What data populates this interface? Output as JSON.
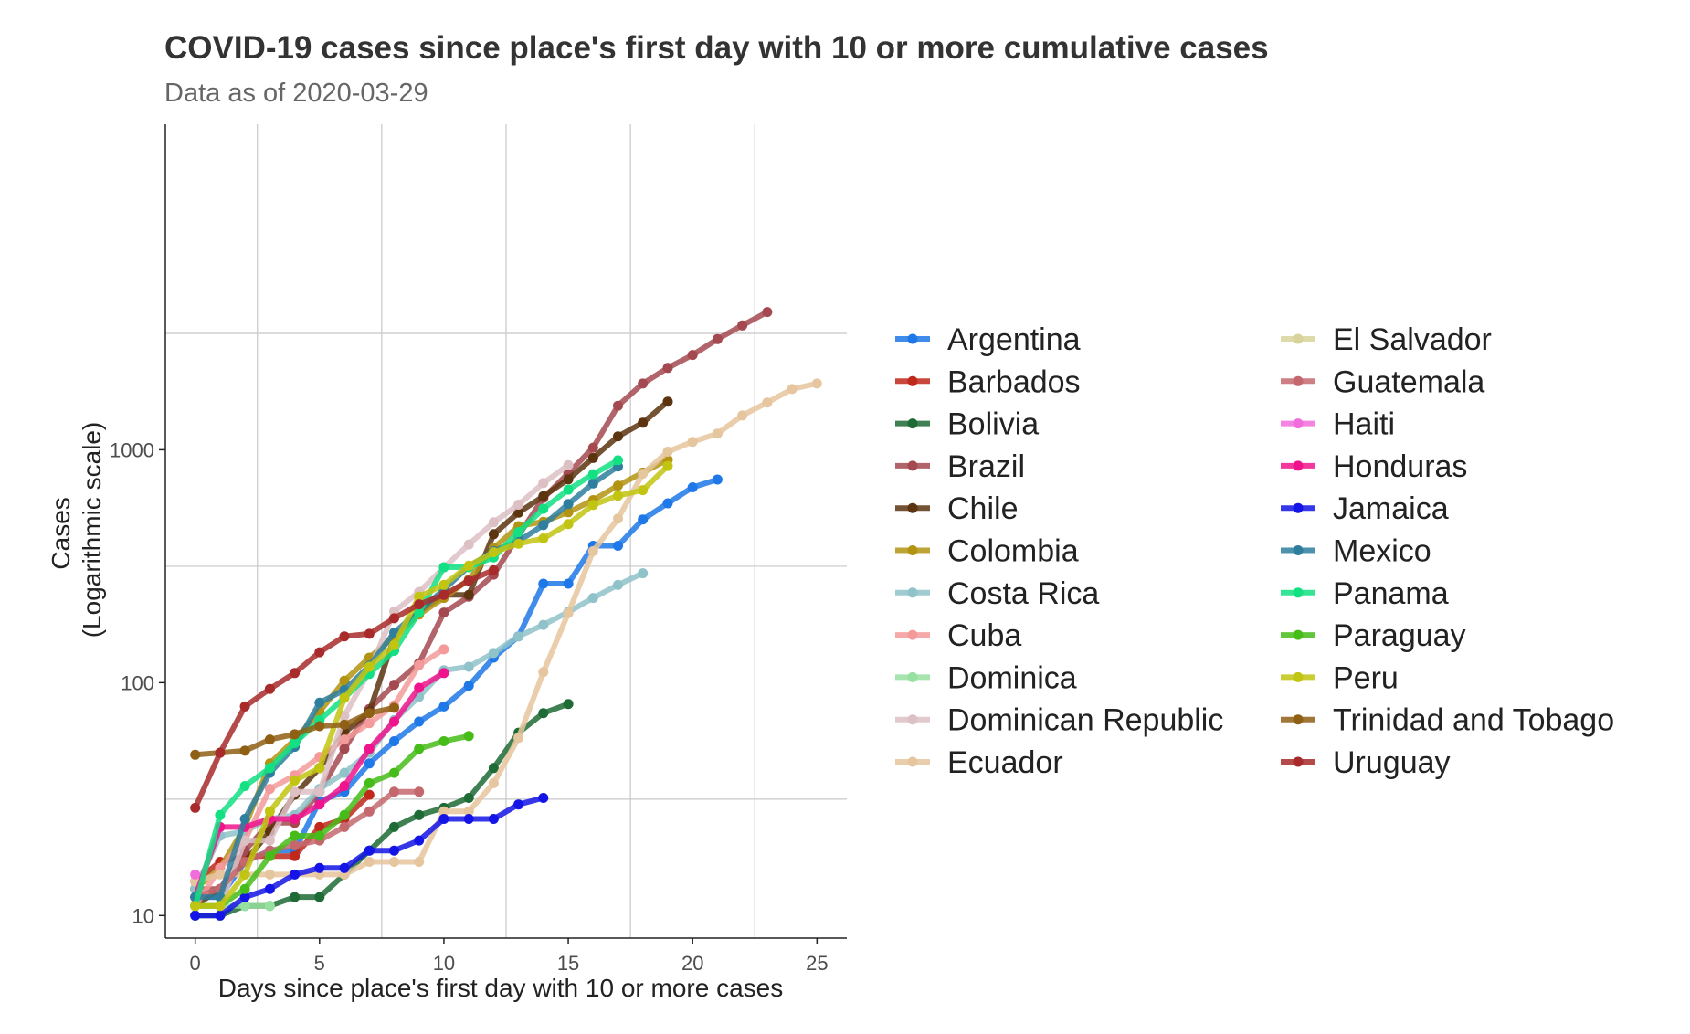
{
  "chart_data": {
    "type": "line",
    "title": "COVID-19 cases since place's first day with 10 or more cumulative cases",
    "subtitle": "Data as of 2020-03-29",
    "xlabel": "Days since place's first day with 10 or more cases",
    "ylabel": [
      "Cases",
      "(Logarithmic scale)"
    ],
    "xlim": [
      -1.2,
      26.2
    ],
    "ylim": [
      8,
      25000
    ],
    "y_scale": "log",
    "x_ticks": [
      0,
      5,
      10,
      15,
      20,
      25
    ],
    "x_tick_labels": [
      "0",
      "5",
      "10",
      "15",
      "20",
      "25"
    ],
    "x_minor_gridlines": [
      2.5,
      7.5,
      12.5,
      17.5,
      22.5
    ],
    "y_ticks": [
      10,
      100,
      1000
    ],
    "y_tick_labels": [
      "10",
      "100",
      "1000"
    ],
    "y_minor_gridlines": [
      31.6,
      316,
      3160
    ],
    "grid": true,
    "legend_position": "right",
    "legend_columns": 2,
    "series": [
      {
        "name": "Argentina",
        "color": "#1f78e8",
        "x": [
          0,
          1,
          2,
          3,
          4,
          5,
          6,
          7,
          8,
          9,
          10,
          11,
          12,
          13,
          14,
          15,
          16,
          17,
          18,
          19,
          20,
          21
        ],
        "y": [
          12,
          12,
          17,
          19,
          19,
          31,
          34,
          45,
          56,
          68,
          79,
          97,
          128,
          158,
          266,
          266,
          387,
          387,
          502,
          589,
          690,
          745
        ]
      },
      {
        "name": "Barbados",
        "color": "#c0281b",
        "x": [
          0,
          1,
          2,
          3,
          4,
          5,
          6,
          7
        ],
        "y": [
          14,
          17,
          18,
          18,
          18,
          24,
          26,
          33
        ]
      },
      {
        "name": "Bolivia",
        "color": "#1e6b35",
        "x": [
          0,
          1,
          2,
          3,
          4,
          5,
          6,
          7,
          8,
          9,
          10,
          11,
          12,
          13,
          14,
          15
        ],
        "y": [
          10,
          10,
          11,
          11,
          12,
          12,
          15,
          19,
          24,
          27,
          29,
          32,
          43,
          61,
          74,
          81
        ]
      },
      {
        "name": "Brazil",
        "color": "#a3494f",
        "x": [
          0,
          1,
          2,
          3,
          4,
          5,
          6,
          7,
          8,
          9,
          10,
          11,
          12,
          13,
          14,
          15,
          16,
          17,
          18,
          19,
          20,
          21,
          22,
          23
        ],
        "y": [
          13,
          13,
          19,
          25,
          25,
          34,
          52,
          77,
          98,
          121,
          200,
          234,
          291,
          428,
          621,
          793,
          1021,
          1546,
          1924,
          2247,
          2554,
          2985,
          3417,
          3904
        ]
      },
      {
        "name": "Chile",
        "color": "#5c3410",
        "x": [
          0,
          1,
          2,
          3,
          4,
          5,
          6,
          7,
          8,
          9,
          10,
          11,
          12,
          13,
          14,
          15,
          16,
          17,
          18,
          19
        ],
        "y": [
          11,
          13,
          17,
          23,
          33,
          43,
          61,
          75,
          156,
          201,
          238,
          238,
          434,
          537,
          632,
          746,
          922,
          1142,
          1306,
          1610
        ]
      },
      {
        "name": "Colombia",
        "color": "#b39412",
        "x": [
          0,
          1,
          2,
          3,
          4,
          5,
          6,
          7,
          8,
          9,
          10,
          11,
          12,
          13,
          14,
          15,
          16,
          17,
          18,
          19
        ],
        "y": [
          13,
          16,
          24,
          45,
          57,
          75,
          102,
          128,
          158,
          196,
          231,
          277,
          378,
          470,
          491,
          539,
          608,
          702,
          798,
          906
        ]
      },
      {
        "name": "Costa Rica",
        "color": "#8fc3c9",
        "x": [
          0,
          1,
          2,
          3,
          4,
          5,
          6,
          7,
          8,
          9,
          10,
          11,
          12,
          13,
          14,
          15,
          16,
          17,
          18
        ],
        "y": [
          13,
          22,
          23,
          26,
          27,
          35,
          41,
          50,
          69,
          87,
          113,
          117,
          134,
          158,
          177,
          201,
          231,
          263,
          295
        ]
      },
      {
        "name": "Cuba",
        "color": "#f59a9a",
        "x": [
          0,
          1,
          2,
          3,
          4,
          5,
          6,
          7,
          8,
          9,
          10
        ],
        "y": [
          11,
          16,
          21,
          35,
          40,
          48,
          57,
          67,
          80,
          119,
          139
        ]
      },
      {
        "name": "Dominica",
        "color": "#96e0a0",
        "x": [
          0,
          1,
          2,
          3
        ],
        "y": [
          11,
          11,
          11,
          11
        ]
      },
      {
        "name": "Dominican Republic",
        "color": "#dcc0c4",
        "x": [
          0,
          1,
          2,
          3,
          4,
          5,
          6,
          7,
          8,
          9,
          10,
          11,
          12,
          13,
          14,
          15
        ],
        "y": [
          11,
          11,
          21,
          21,
          34,
          34,
          72,
          112,
          202,
          245,
          312,
          392,
          488,
          581,
          719,
          859
        ]
      },
      {
        "name": "Ecuador",
        "color": "#e6c69e",
        "x": [
          0,
          1,
          2,
          3,
          4,
          5,
          6,
          7,
          8,
          9,
          10,
          11,
          12,
          13,
          14,
          15,
          16,
          17,
          18,
          19,
          20,
          21,
          22,
          23,
          24,
          25
        ],
        "y": [
          14,
          15,
          15,
          15,
          15,
          15,
          15,
          17,
          17,
          17,
          28,
          28,
          37,
          58,
          111,
          199,
          367,
          506,
          789,
          981,
          1082,
          1173,
          1403,
          1595,
          1823,
          1924
        ]
      },
      {
        "name": "El Salvador",
        "color": "#d8d39a",
        "x": [],
        "y": []
      },
      {
        "name": "Guatemala",
        "color": "#c4686e",
        "x": [
          0,
          1,
          2,
          3,
          4,
          5,
          6,
          7,
          8,
          9
        ],
        "y": [
          12,
          13,
          17,
          19,
          20,
          21,
          24,
          28,
          34,
          34
        ]
      },
      {
        "name": "Haiti",
        "color": "#f26ddc",
        "x": [
          0
        ],
        "y": [
          15
        ]
      },
      {
        "name": "Honduras",
        "color": "#f0148c",
        "x": [
          0,
          1,
          2,
          3,
          4,
          5,
          6,
          7,
          8,
          9,
          10
        ],
        "y": [
          12,
          24,
          24,
          26,
          26,
          30,
          36,
          52,
          68,
          95,
          110
        ]
      },
      {
        "name": "Jamaica",
        "color": "#1414e6",
        "x": [
          0,
          1,
          2,
          3,
          4,
          5,
          6,
          7,
          8,
          9,
          10,
          11,
          12,
          13,
          14
        ],
        "y": [
          10,
          10,
          12,
          13,
          15,
          16,
          16,
          19,
          19,
          21,
          26,
          26,
          26,
          30,
          32
        ]
      },
      {
        "name": "Mexico",
        "color": "#2e7f9e",
        "x": [
          0,
          1,
          2,
          3,
          4,
          5,
          6,
          7,
          8,
          9,
          10,
          11,
          12,
          13,
          14,
          15,
          16,
          17
        ],
        "y": [
          12,
          12,
          26,
          41,
          53,
          82,
          93,
          118,
          164,
          203,
          251,
          316,
          367,
          405,
          475,
          585,
          717,
          848
        ]
      },
      {
        "name": "Panama",
        "color": "#12e082",
        "x": [
          0,
          1,
          2,
          3,
          4,
          5,
          6,
          7,
          8,
          9,
          10,
          11,
          12,
          13,
          14,
          15,
          16,
          17
        ],
        "y": [
          11,
          27,
          36,
          43,
          55,
          69,
          86,
          109,
          137,
          200,
          313,
          313,
          345,
          443,
          558,
          674,
          786,
          901
        ]
      },
      {
        "name": "Paraguay",
        "color": "#46bc19",
        "x": [
          0,
          1,
          2,
          3,
          4,
          5,
          6,
          7,
          8,
          9,
          10,
          11
        ],
        "y": [
          11,
          11,
          13,
          18,
          22,
          22,
          27,
          37,
          41,
          52,
          56,
          59
        ]
      },
      {
        "name": "Peru",
        "color": "#c2c412",
        "x": [
          0,
          1,
          2,
          3,
          4,
          5,
          6,
          7,
          8,
          9,
          10,
          11,
          12,
          13,
          14,
          15,
          16,
          17,
          18,
          19
        ],
        "y": [
          11,
          11,
          15,
          28,
          38,
          43,
          86,
          117,
          145,
          234,
          263,
          318,
          363,
          395,
          416,
          480,
          580,
          635,
          671,
          852
        ]
      },
      {
        "name": "Trinidad and Tobago",
        "color": "#8f5f14",
        "x": [
          0,
          1,
          2,
          3,
          4,
          5,
          6,
          7,
          8
        ],
        "y": [
          49,
          50,
          51,
          57,
          60,
          65,
          66,
          74,
          78
        ]
      },
      {
        "name": "Uruguay",
        "color": "#a82a2a",
        "x": [
          0,
          1,
          2,
          3,
          4,
          5,
          6,
          7,
          8,
          9,
          10,
          11,
          12
        ],
        "y": [
          29,
          50,
          79,
          94,
          110,
          135,
          158,
          162,
          189,
          217,
          238,
          274,
          304
        ]
      }
    ]
  }
}
